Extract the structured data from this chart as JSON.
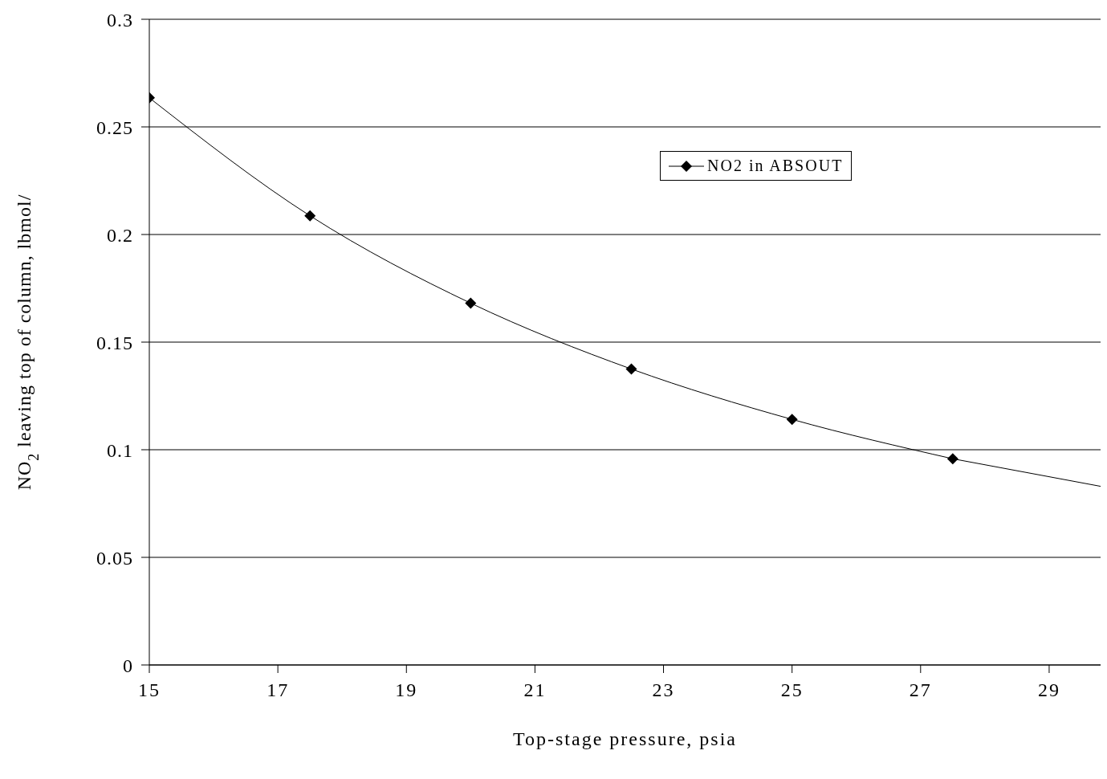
{
  "chart_data": {
    "type": "line",
    "xlabel": "Top-stage pressure, psia",
    "ylabel": "NO$_{2}$ leaving top of column, lbmol/",
    "xlim": [
      15,
      29.8
    ],
    "xticks": [
      15,
      17,
      19,
      21,
      23,
      25,
      27,
      29
    ],
    "ylim": [
      0,
      0.3
    ],
    "yticks": [
      0,
      0.05,
      0.1,
      0.15,
      0.2,
      0.25,
      0.3
    ],
    "grid": "y",
    "legend": "top right",
    "line_style": "solid",
    "series": [
      {
        "name": "NO2 in ABSOUT",
        "color": "#000000",
        "marker": "diamond",
        "x": [
          15,
          17.5,
          20,
          22.5,
          25,
          27.5
        ],
        "values": [
          0.2635,
          0.2087,
          0.1681,
          0.1375,
          0.1141,
          0.0958
        ]
      },
      {
        "type": "line",
        "color": "#000000",
        "marker": "none",
        "x": [
          27.5,
          29.8
        ],
        "values": [
          0.0958,
          0.083
        ]
      }
    ]
  }
}
